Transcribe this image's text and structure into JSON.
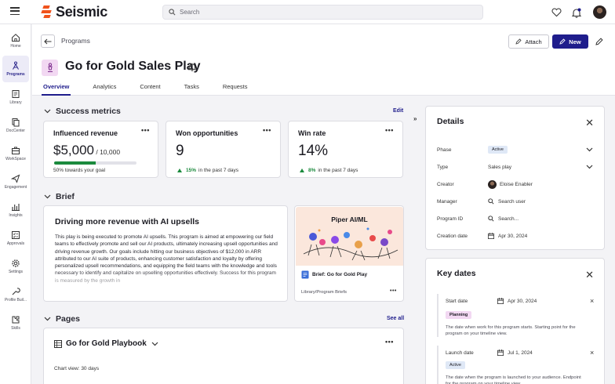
{
  "app": {
    "brand": "Seismic",
    "search_placeholder": "Search"
  },
  "sidebar": {
    "items": [
      {
        "label": "Home",
        "icon": "home-icon"
      },
      {
        "label": "Programs",
        "icon": "programs-icon",
        "active": true
      },
      {
        "label": "Library",
        "icon": "library-icon"
      },
      {
        "label": "DocCenter",
        "icon": "doccenter-icon"
      },
      {
        "label": "WorkSpace",
        "icon": "workspace-icon"
      },
      {
        "label": "Engagement",
        "icon": "engagement-icon"
      },
      {
        "label": "Insights",
        "icon": "insights-icon"
      },
      {
        "label": "Approvals",
        "icon": "approvals-icon"
      },
      {
        "label": "Settings",
        "icon": "settings-icon"
      },
      {
        "label": "Profile Buil...",
        "icon": "profile-builder-icon"
      },
      {
        "label": "Skills",
        "icon": "skills-icon"
      }
    ]
  },
  "header": {
    "breadcrumb": "Programs",
    "title": "Go for Gold Sales Play",
    "attach_label": "Attach",
    "new_label": "New",
    "tabs": [
      "Overview",
      "Analytics",
      "Content",
      "Tasks",
      "Requests"
    ]
  },
  "success_metrics": {
    "heading": "Success metrics",
    "edit_label": "Edit",
    "influenced": {
      "title": "Influenced revenue",
      "value": "$5,000",
      "target": " / 10,000",
      "progress_fraction": 0.5,
      "note": "50% towards your goal"
    },
    "won": {
      "title": "Won opportunities",
      "value": "9",
      "delta": "15%",
      "delta_note": "in the past 7 days"
    },
    "winrate": {
      "title": "Win rate",
      "value": "14%",
      "delta": "8%",
      "delta_note": "in the past 7 days"
    }
  },
  "brief": {
    "heading": "Brief",
    "title": "Driving more revenue with AI upsells",
    "body": "This play is being executed to promote AI upsells. This program is aimed at empowering our field teams to effectively promote and sell our AI products, ultimately increasing upsell opportunities and driving revenue growth. Our goals include hitting our business objectives of $12,000 in ARR attributed to our AI suite of products, enhancing customer satisfaction and loyalty by offering personalized upsell recommendations, and equipping the field teams with the knowledge and tools necessary to identify and capitalize on upselling opportunities effectively. Success for this program is measured by the growth in",
    "thumb_title": "Piper AI/ML",
    "doc_name": "Brief: Go for Gold Play",
    "doc_path": "Library/Program Briefs"
  },
  "pages": {
    "heading": "Pages",
    "see_all_label": "See all",
    "playbook_title": "Go for Gold Playbook",
    "chart_view": "Chart view: 30 days"
  },
  "details": {
    "heading": "Details",
    "rows": {
      "phase": {
        "label": "Phase",
        "value": "Active"
      },
      "type": {
        "label": "Type",
        "value": "Sales play"
      },
      "creator": {
        "label": "Creator",
        "value": "Eloise Enabler"
      },
      "manager": {
        "label": "Manager",
        "value": "Search user"
      },
      "program_id": {
        "label": "Program ID",
        "value": "Search..."
      },
      "creation_date": {
        "label": "Creation date",
        "value": "Apr 30, 2024"
      }
    }
  },
  "key_dates": {
    "heading": "Key dates",
    "items": [
      {
        "label": "Start date",
        "date": "Apr 30, 2024",
        "badge": "Planning",
        "desc": "The date when work for this program starts. Starting point for the program on your timeline view."
      },
      {
        "label": "Launch date",
        "date": "Jul 1, 2024",
        "badge": "Active",
        "desc": "The date when the program is launched to your audience. Endpoint for the program on your timeline view."
      }
    ]
  },
  "colors": {
    "brand_orange": "#f0531c",
    "primary": "#1f1d8c",
    "success": "#1b8a3d",
    "planning_bg": "#f2d8f2",
    "active_bg": "#dfe8f6"
  }
}
